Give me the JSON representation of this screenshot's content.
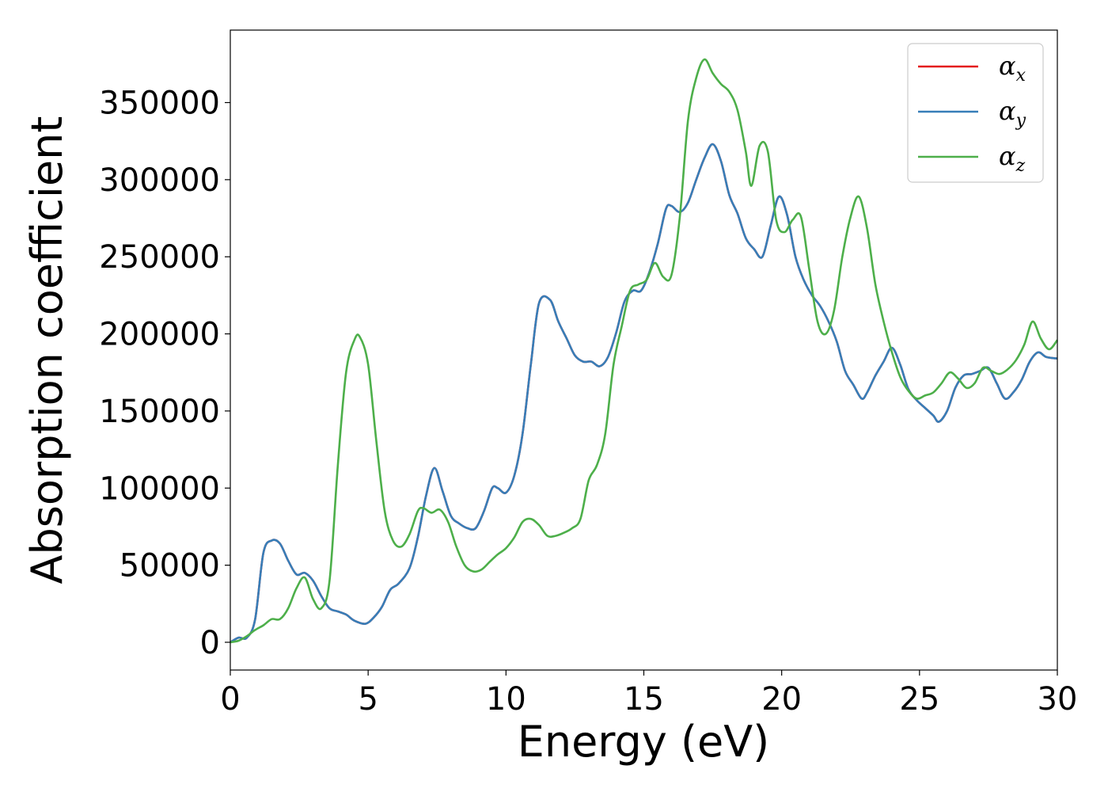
{
  "chart_data": {
    "type": "line",
    "xlabel": "Energy (eV)",
    "ylabel": "Absorption coefficient",
    "xlim": [
      0,
      30
    ],
    "ylim": [
      -18000,
      397000
    ],
    "xticks": [
      "0",
      "5",
      "10",
      "15",
      "20",
      "25",
      "30"
    ],
    "yticks": [
      "0",
      "50000",
      "100000",
      "150000",
      "200000",
      "250000",
      "300000",
      "350000"
    ],
    "grid": false,
    "legend_position": "top-right",
    "series": [
      {
        "name": "x",
        "color": "#e41a1c",
        "x": [
          0,
          0.3,
          0.6,
          0.9,
          1.2,
          1.5,
          1.8,
          2.1,
          2.4,
          2.7,
          3.0,
          3.3,
          3.6,
          3.9,
          4.2,
          4.5,
          4.9,
          5.2,
          5.5,
          5.8,
          6.1,
          6.5,
          6.8,
          7.1,
          7.4,
          7.7,
          8.0,
          8.3,
          8.6,
          8.9,
          9.2,
          9.5,
          9.7,
          10.0,
          10.3,
          10.6,
          10.9,
          11.2,
          11.6,
          11.9,
          12.2,
          12.5,
          12.8,
          13.1,
          13.4,
          13.7,
          14.0,
          14.3,
          14.6,
          14.9,
          15.2,
          15.5,
          15.8,
          16.0,
          16.3,
          16.6,
          16.9,
          17.2,
          17.5,
          17.8,
          18.1,
          18.4,
          18.7,
          19.0,
          19.3,
          19.6,
          19.9,
          20.2,
          20.5,
          20.8,
          21.1,
          21.4,
          21.7,
          22.0,
          22.3,
          22.6,
          22.9,
          23.1,
          23.4,
          23.7,
          24.0,
          24.3,
          24.6,
          24.9,
          25.2,
          25.5,
          25.7,
          26.0,
          26.3,
          26.6,
          26.9,
          27.2,
          27.5,
          27.8,
          28.1,
          28.4,
          28.7,
          29.0,
          29.3,
          29.6,
          30.0
        ],
        "values": [
          0,
          3000,
          3000,
          15000,
          58000,
          66000,
          64000,
          53000,
          44000,
          45000,
          40000,
          30000,
          22000,
          20000,
          18000,
          14000,
          12000,
          16000,
          23000,
          34000,
          38000,
          48000,
          68000,
          95000,
          113000,
          98000,
          82000,
          77000,
          74000,
          74000,
          85000,
          100000,
          100000,
          97000,
          108000,
          135000,
          180000,
          220000,
          222000,
          208000,
          197000,
          186000,
          182000,
          182000,
          179000,
          185000,
          201000,
          221000,
          228000,
          228000,
          240000,
          258000,
          281000,
          283000,
          279000,
          285000,
          300000,
          314000,
          323000,
          312000,
          290000,
          278000,
          262000,
          255000,
          250000,
          270000,
          289000,
          277000,
          250000,
          235000,
          225000,
          218000,
          208000,
          195000,
          176000,
          167000,
          158000,
          162000,
          173000,
          182000,
          191000,
          180000,
          164000,
          157000,
          152000,
          147000,
          143000,
          150000,
          165000,
          173000,
          174000,
          176000,
          178000,
          168000,
          158000,
          162000,
          170000,
          182000,
          188000,
          185000,
          184000
        ]
      },
      {
        "name": "y",
        "color": "#377eb8",
        "x": [
          0,
          0.3,
          0.6,
          0.9,
          1.2,
          1.5,
          1.8,
          2.1,
          2.4,
          2.7,
          3.0,
          3.3,
          3.6,
          3.9,
          4.2,
          4.5,
          4.9,
          5.2,
          5.5,
          5.8,
          6.1,
          6.5,
          6.8,
          7.1,
          7.4,
          7.7,
          8.0,
          8.3,
          8.6,
          8.9,
          9.2,
          9.5,
          9.7,
          10.0,
          10.3,
          10.6,
          10.9,
          11.2,
          11.6,
          11.9,
          12.2,
          12.5,
          12.8,
          13.1,
          13.4,
          13.7,
          14.0,
          14.3,
          14.6,
          14.9,
          15.2,
          15.5,
          15.8,
          16.0,
          16.3,
          16.6,
          16.9,
          17.2,
          17.5,
          17.8,
          18.1,
          18.4,
          18.7,
          19.0,
          19.3,
          19.6,
          19.9,
          20.2,
          20.5,
          20.8,
          21.1,
          21.4,
          21.7,
          22.0,
          22.3,
          22.6,
          22.9,
          23.1,
          23.4,
          23.7,
          24.0,
          24.3,
          24.6,
          24.9,
          25.2,
          25.5,
          25.7,
          26.0,
          26.3,
          26.6,
          26.9,
          27.2,
          27.5,
          27.8,
          28.1,
          28.4,
          28.7,
          29.0,
          29.3,
          29.6,
          30.0
        ],
        "values": [
          0,
          3000,
          3000,
          15000,
          58000,
          66000,
          64000,
          53000,
          44000,
          45000,
          40000,
          30000,
          22000,
          20000,
          18000,
          14000,
          12000,
          16000,
          23000,
          34000,
          38000,
          48000,
          68000,
          95000,
          113000,
          98000,
          82000,
          77000,
          74000,
          74000,
          85000,
          100000,
          100000,
          97000,
          108000,
          135000,
          180000,
          220000,
          222000,
          208000,
          197000,
          186000,
          182000,
          182000,
          179000,
          185000,
          201000,
          221000,
          228000,
          228000,
          240000,
          258000,
          281000,
          283000,
          279000,
          285000,
          300000,
          314000,
          323000,
          312000,
          290000,
          278000,
          262000,
          255000,
          250000,
          270000,
          289000,
          277000,
          250000,
          235000,
          225000,
          218000,
          208000,
          195000,
          176000,
          167000,
          158000,
          162000,
          173000,
          182000,
          191000,
          180000,
          164000,
          157000,
          152000,
          147000,
          143000,
          150000,
          165000,
          173000,
          174000,
          176000,
          178000,
          168000,
          158000,
          162000,
          170000,
          182000,
          188000,
          185000,
          184000
        ]
      },
      {
        "name": "z",
        "color": "#4daf4a",
        "x": [
          0,
          0.3,
          0.6,
          0.9,
          1.2,
          1.5,
          1.8,
          2.1,
          2.4,
          2.7,
          3.0,
          3.3,
          3.6,
          3.9,
          4.2,
          4.5,
          4.7,
          5.0,
          5.3,
          5.6,
          5.9,
          6.2,
          6.5,
          6.8,
          7.0,
          7.3,
          7.6,
          7.9,
          8.2,
          8.5,
          8.8,
          9.1,
          9.4,
          9.7,
          10.0,
          10.3,
          10.6,
          10.9,
          11.2,
          11.5,
          11.8,
          12.1,
          12.4,
          12.7,
          13.0,
          13.3,
          13.6,
          13.9,
          14.2,
          14.5,
          14.8,
          15.1,
          15.4,
          15.7,
          16.0,
          16.3,
          16.6,
          16.9,
          17.2,
          17.5,
          17.8,
          18.1,
          18.4,
          18.7,
          18.9,
          19.2,
          19.5,
          19.8,
          20.1,
          20.4,
          20.7,
          21.0,
          21.3,
          21.6,
          21.9,
          22.2,
          22.5,
          22.8,
          23.1,
          23.4,
          23.7,
          24.0,
          24.3,
          24.6,
          24.9,
          25.2,
          25.5,
          25.8,
          26.1,
          26.4,
          26.7,
          27.0,
          27.3,
          27.6,
          27.9,
          28.2,
          28.5,
          28.8,
          29.1,
          29.4,
          29.7,
          30.0
        ],
        "values": [
          0,
          1000,
          4000,
          8000,
          11000,
          15000,
          15000,
          22000,
          35000,
          42000,
          28000,
          22000,
          40000,
          115000,
          175000,
          196000,
          198000,
          180000,
          130000,
          85000,
          66000,
          62000,
          70000,
          85000,
          87000,
          84000,
          86000,
          78000,
          62000,
          50000,
          46000,
          47000,
          52000,
          57000,
          61000,
          68000,
          78000,
          80000,
          76000,
          69000,
          69000,
          71000,
          74000,
          80000,
          105000,
          115000,
          135000,
          180000,
          205000,
          228000,
          232000,
          235000,
          246000,
          237000,
          238000,
          275000,
          338000,
          366000,
          378000,
          369000,
          362000,
          357000,
          345000,
          318000,
          296000,
          322000,
          318000,
          274000,
          266000,
          274000,
          276000,
          242000,
          208000,
          200000,
          215000,
          250000,
          276000,
          289000,
          268000,
          232000,
          208000,
          188000,
          172000,
          163000,
          158000,
          160000,
          162000,
          168000,
          175000,
          171000,
          165000,
          168000,
          178000,
          176000,
          174000,
          177000,
          183000,
          193000,
          208000,
          197000,
          190000,
          196000
        ]
      }
    ]
  }
}
